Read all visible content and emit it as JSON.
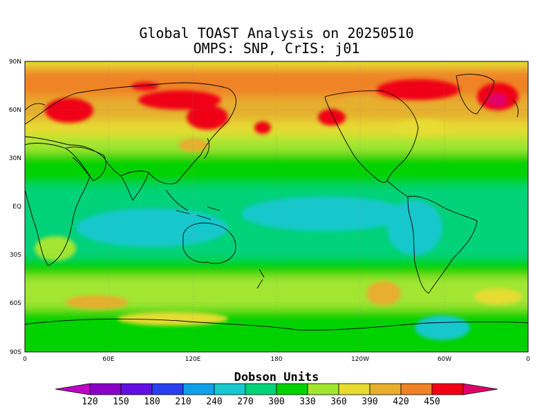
{
  "title": {
    "line1": "Global TOAST Analysis on 20250510",
    "line2": "OMPS: SNP, CrIS: j01"
  },
  "map": {
    "lat_labels": [
      "90N",
      "60N",
      "30N",
      "EQ",
      "30S",
      "60S",
      "90S"
    ],
    "lon_labels": [
      "0",
      "60E",
      "120E",
      "180",
      "120W",
      "60W",
      "0"
    ],
    "ozone_field_regions": [
      {
        "region": "high latitudes north",
        "level": 390
      },
      {
        "region": "northern mid-latitudes",
        "level": 330
      },
      {
        "region": "tropics",
        "level": 270
      },
      {
        "region": "southern mid-latitudes",
        "level": 330
      },
      {
        "region": "antarctic",
        "level": 300
      }
    ]
  },
  "colorbar": {
    "title": "Dobson Units",
    "ticks": [
      "120",
      "150",
      "180",
      "210",
      "240",
      "270",
      "300",
      "330",
      "360",
      "390",
      "420",
      "450"
    ],
    "colors": [
      "#8a00c8",
      "#6010e0",
      "#2a40ee",
      "#10a0ea",
      "#18c8cc",
      "#00d27a",
      "#00d200",
      "#a2e632",
      "#e6dc32",
      "#e6af2d",
      "#f08228",
      "#f00014"
    ],
    "low_color": "#c000c8",
    "high_color": "#e0006a"
  }
}
